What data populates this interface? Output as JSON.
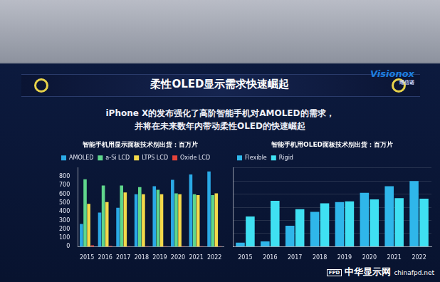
{
  "slide_title": "柔性OLED显示需求快速崛起",
  "subtitle": [
    "iPhone X的发布强化了高阶智能手机对AMOLED的需求，",
    "并将在未来数年内带动柔性OLED的快速崛起"
  ],
  "logo": {
    "name": "Visionox",
    "chinese": "维信诺"
  },
  "watermark": {
    "icon": "FPD",
    "name": "中华显示网",
    "site": "chinafpd.net"
  },
  "chart_data": [
    {
      "type": "bar",
      "title": "智能手机用显示面板技术别出货：百万片",
      "categories": [
        "2015",
        "2016",
        "2017",
        "2018",
        "2019",
        "2020",
        "2021",
        "2022"
      ],
      "series": [
        {
          "name": "AMOLED",
          "color": "#2aa9e6",
          "values": [
            260,
            390,
            445,
            600,
            690,
            765,
            825,
            860
          ]
        },
        {
          "name": "a-Si LCD",
          "color": "#5fd68c",
          "values": [
            770,
            700,
            700,
            680,
            650,
            610,
            600,
            590
          ]
        },
        {
          "name": "LTPS LCD",
          "color": "#f4d94a",
          "values": [
            490,
            510,
            620,
            600,
            600,
            600,
            590,
            610
          ]
        },
        {
          "name": "Oxide LCD",
          "color": "#e4433a",
          "values": [
            15,
            10,
            5,
            5,
            5,
            5,
            5,
            5
          ]
        }
      ],
      "ylim": [
        0,
        900
      ],
      "yticks": [
        0,
        100,
        200,
        300,
        400,
        500,
        600,
        700,
        800
      ],
      "grid": false,
      "legend": "top"
    },
    {
      "type": "bar",
      "title": "智能手机用OLED面板技术别出货：百万片",
      "categories": [
        "2015",
        "2016",
        "2017",
        "2018",
        "2019",
        "2020",
        "2021",
        "2022"
      ],
      "series": [
        {
          "name": "Flexible",
          "color": "#2fb6ea",
          "values": [
            30,
            40,
            160,
            265,
            340,
            410,
            460,
            500
          ]
        },
        {
          "name": "Rigid",
          "color": "#3fe0f2",
          "values": [
            230,
            350,
            285,
            330,
            345,
            360,
            370,
            365
          ]
        }
      ],
      "ylim": [
        0,
        600
      ],
      "yticks": [
        0,
        100,
        200,
        300,
        400,
        500,
        600
      ],
      "grid": true,
      "legend": "top",
      "tick_labels": "x"
    }
  ]
}
